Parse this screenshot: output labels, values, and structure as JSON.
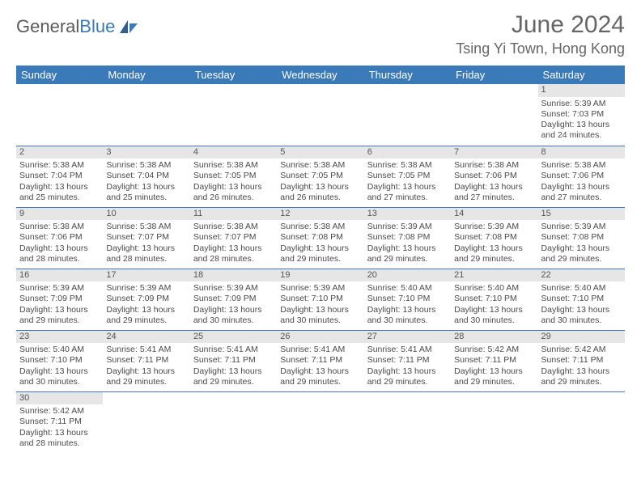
{
  "logo": {
    "text1": "General",
    "text2": "Blue"
  },
  "title": "June 2024",
  "location": "Tsing Yi Town, Hong Kong",
  "colors": {
    "header_bg": "#3a7ab8",
    "header_fg": "#ffffff",
    "daynum_bg": "#e6e6e6",
    "border": "#3a7ab8",
    "text": "#4a4a4a",
    "title": "#666666"
  },
  "weekdays": [
    "Sunday",
    "Monday",
    "Tuesday",
    "Wednesday",
    "Thursday",
    "Friday",
    "Saturday"
  ],
  "weeks": [
    [
      null,
      null,
      null,
      null,
      null,
      null,
      {
        "n": 1,
        "sr": "5:39 AM",
        "ss": "7:03 PM",
        "dl": "13 hours and 24 minutes."
      }
    ],
    [
      {
        "n": 2,
        "sr": "5:38 AM",
        "ss": "7:04 PM",
        "dl": "13 hours and 25 minutes."
      },
      {
        "n": 3,
        "sr": "5:38 AM",
        "ss": "7:04 PM",
        "dl": "13 hours and 25 minutes."
      },
      {
        "n": 4,
        "sr": "5:38 AM",
        "ss": "7:05 PM",
        "dl": "13 hours and 26 minutes."
      },
      {
        "n": 5,
        "sr": "5:38 AM",
        "ss": "7:05 PM",
        "dl": "13 hours and 26 minutes."
      },
      {
        "n": 6,
        "sr": "5:38 AM",
        "ss": "7:05 PM",
        "dl": "13 hours and 27 minutes."
      },
      {
        "n": 7,
        "sr": "5:38 AM",
        "ss": "7:06 PM",
        "dl": "13 hours and 27 minutes."
      },
      {
        "n": 8,
        "sr": "5:38 AM",
        "ss": "7:06 PM",
        "dl": "13 hours and 27 minutes."
      }
    ],
    [
      {
        "n": 9,
        "sr": "5:38 AM",
        "ss": "7:06 PM",
        "dl": "13 hours and 28 minutes."
      },
      {
        "n": 10,
        "sr": "5:38 AM",
        "ss": "7:07 PM",
        "dl": "13 hours and 28 minutes."
      },
      {
        "n": 11,
        "sr": "5:38 AM",
        "ss": "7:07 PM",
        "dl": "13 hours and 28 minutes."
      },
      {
        "n": 12,
        "sr": "5:38 AM",
        "ss": "7:08 PM",
        "dl": "13 hours and 29 minutes."
      },
      {
        "n": 13,
        "sr": "5:39 AM",
        "ss": "7:08 PM",
        "dl": "13 hours and 29 minutes."
      },
      {
        "n": 14,
        "sr": "5:39 AM",
        "ss": "7:08 PM",
        "dl": "13 hours and 29 minutes."
      },
      {
        "n": 15,
        "sr": "5:39 AM",
        "ss": "7:08 PM",
        "dl": "13 hours and 29 minutes."
      }
    ],
    [
      {
        "n": 16,
        "sr": "5:39 AM",
        "ss": "7:09 PM",
        "dl": "13 hours and 29 minutes."
      },
      {
        "n": 17,
        "sr": "5:39 AM",
        "ss": "7:09 PM",
        "dl": "13 hours and 29 minutes."
      },
      {
        "n": 18,
        "sr": "5:39 AM",
        "ss": "7:09 PM",
        "dl": "13 hours and 30 minutes."
      },
      {
        "n": 19,
        "sr": "5:39 AM",
        "ss": "7:10 PM",
        "dl": "13 hours and 30 minutes."
      },
      {
        "n": 20,
        "sr": "5:40 AM",
        "ss": "7:10 PM",
        "dl": "13 hours and 30 minutes."
      },
      {
        "n": 21,
        "sr": "5:40 AM",
        "ss": "7:10 PM",
        "dl": "13 hours and 30 minutes."
      },
      {
        "n": 22,
        "sr": "5:40 AM",
        "ss": "7:10 PM",
        "dl": "13 hours and 30 minutes."
      }
    ],
    [
      {
        "n": 23,
        "sr": "5:40 AM",
        "ss": "7:10 PM",
        "dl": "13 hours and 30 minutes."
      },
      {
        "n": 24,
        "sr": "5:41 AM",
        "ss": "7:11 PM",
        "dl": "13 hours and 29 minutes."
      },
      {
        "n": 25,
        "sr": "5:41 AM",
        "ss": "7:11 PM",
        "dl": "13 hours and 29 minutes."
      },
      {
        "n": 26,
        "sr": "5:41 AM",
        "ss": "7:11 PM",
        "dl": "13 hours and 29 minutes."
      },
      {
        "n": 27,
        "sr": "5:41 AM",
        "ss": "7:11 PM",
        "dl": "13 hours and 29 minutes."
      },
      {
        "n": 28,
        "sr": "5:42 AM",
        "ss": "7:11 PM",
        "dl": "13 hours and 29 minutes."
      },
      {
        "n": 29,
        "sr": "5:42 AM",
        "ss": "7:11 PM",
        "dl": "13 hours and 29 minutes."
      }
    ],
    [
      {
        "n": 30,
        "sr": "5:42 AM",
        "ss": "7:11 PM",
        "dl": "13 hours and 28 minutes."
      },
      null,
      null,
      null,
      null,
      null,
      null
    ]
  ],
  "labels": {
    "sunrise": "Sunrise:",
    "sunset": "Sunset:",
    "daylight": "Daylight:"
  }
}
